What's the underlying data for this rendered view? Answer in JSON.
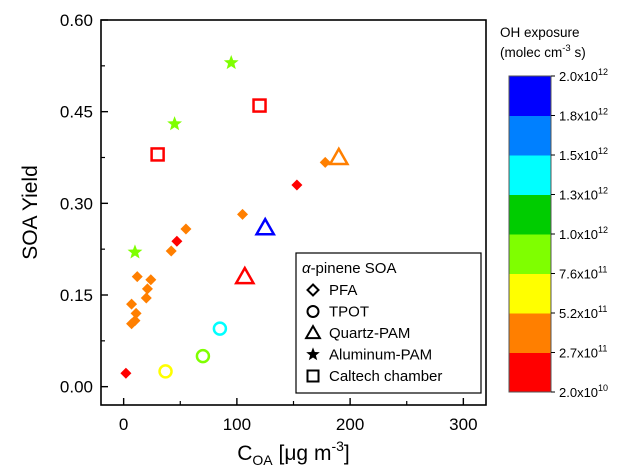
{
  "chart_data": {
    "type": "scatter",
    "title": "",
    "ylabel": "SOA Yield",
    "xlabel_main": "C",
    "xlabel_sub": "OA",
    "xlabel_unit": "[μg m",
    "xlabel_sup": "-3",
    "xlabel_close": "]",
    "xlim": [
      -20,
      320
    ],
    "ylim": [
      -0.03,
      0.6
    ],
    "xticks": [
      0,
      100,
      200,
      300
    ],
    "xtick_labels": [
      "0",
      "100",
      "200",
      "300"
    ],
    "yticks": [
      0.0,
      0.15,
      0.3,
      0.45,
      0.6
    ],
    "ytick_labels": [
      "0.00",
      "0.15",
      "0.30",
      "0.45",
      "0.60"
    ],
    "grid": false,
    "series": [
      {
        "marker": "diamond",
        "points": [
          {
            "x": 2,
            "y": 0.022,
            "color": "#ff0000"
          },
          {
            "x": 7,
            "y": 0.103,
            "color": "#ff7f00"
          },
          {
            "x": 10,
            "y": 0.108,
            "color": "#ff7f00"
          },
          {
            "x": 11,
            "y": 0.12,
            "color": "#ff7f00"
          },
          {
            "x": 7,
            "y": 0.135,
            "color": "#ff7f00"
          },
          {
            "x": 12,
            "y": 0.18,
            "color": "#ff7f00"
          },
          {
            "x": 20,
            "y": 0.145,
            "color": "#ff7f00"
          },
          {
            "x": 21,
            "y": 0.16,
            "color": "#ff7f00"
          },
          {
            "x": 24,
            "y": 0.175,
            "color": "#ff7f00"
          },
          {
            "x": 42,
            "y": 0.222,
            "color": "#ff7f00"
          },
          {
            "x": 47,
            "y": 0.238,
            "color": "#ff0000"
          },
          {
            "x": 55,
            "y": 0.258,
            "color": "#ff7f00"
          },
          {
            "x": 105,
            "y": 0.282,
            "color": "#ff7f00"
          },
          {
            "x": 153,
            "y": 0.33,
            "color": "#ff0000"
          },
          {
            "x": 178,
            "y": 0.367,
            "color": "#ff7f00"
          }
        ]
      },
      {
        "marker": "circle",
        "points": [
          {
            "x": 37,
            "y": 0.025,
            "color": "#ffff00"
          },
          {
            "x": 70,
            "y": 0.05,
            "color": "#7fff00"
          },
          {
            "x": 85,
            "y": 0.095,
            "color": "#00ffff"
          }
        ]
      },
      {
        "marker": "triangle",
        "points": [
          {
            "x": 107,
            "y": 0.18,
            "color": "#ff0000"
          },
          {
            "x": 125,
            "y": 0.26,
            "color": "#0000ff"
          },
          {
            "x": 190,
            "y": 0.375,
            "color": "#ff7f00"
          }
        ]
      },
      {
        "marker": "star",
        "points": [
          {
            "x": 10,
            "y": 0.22,
            "color": "#7fff00"
          },
          {
            "x": 45,
            "y": 0.43,
            "color": "#7fff00"
          },
          {
            "x": 95,
            "y": 0.53,
            "color": "#7fff00"
          }
        ]
      },
      {
        "marker": "square",
        "points": [
          {
            "x": 30,
            "y": 0.38,
            "color": "#ff0000"
          },
          {
            "x": 120,
            "y": 0.46,
            "color": "#ff0000"
          }
        ]
      }
    ],
    "legend": {
      "position": "bottom-right",
      "title_prefix": "α",
      "title_rest": "-pinene SOA",
      "entries": [
        {
          "marker": "diamond",
          "label": "PFA"
        },
        {
          "marker": "circle",
          "label": "TPOT"
        },
        {
          "marker": "triangle",
          "label": "Quartz-PAM"
        },
        {
          "marker": "star",
          "label": "Aluminum-PAM"
        },
        {
          "marker": "square",
          "label": "Caltech chamber"
        }
      ]
    },
    "colorbar": {
      "title_line1": "OH exposure",
      "title_line2_a": "(molec cm",
      "title_line2_sup": "-3",
      "title_line2_b": " s)",
      "bands": [
        "#ff0000",
        "#ff7f00",
        "#ffff00",
        "#7fff00",
        "#00cc00",
        "#00ffff",
        "#0080ff",
        "#0000ff"
      ],
      "labels": [
        {
          "mant": "2.0x10",
          "exp": "10"
        },
        {
          "mant": "2.7x10",
          "exp": "11"
        },
        {
          "mant": "5.2x10",
          "exp": "11"
        },
        {
          "mant": "7.6x10",
          "exp": "11"
        },
        {
          "mant": "1.0x10",
          "exp": "12"
        },
        {
          "mant": "1.3x10",
          "exp": "12"
        },
        {
          "mant": "1.5x10",
          "exp": "12"
        },
        {
          "mant": "1.8x10",
          "exp": "12"
        },
        {
          "mant": "2.0x10",
          "exp": "12"
        }
      ]
    }
  }
}
